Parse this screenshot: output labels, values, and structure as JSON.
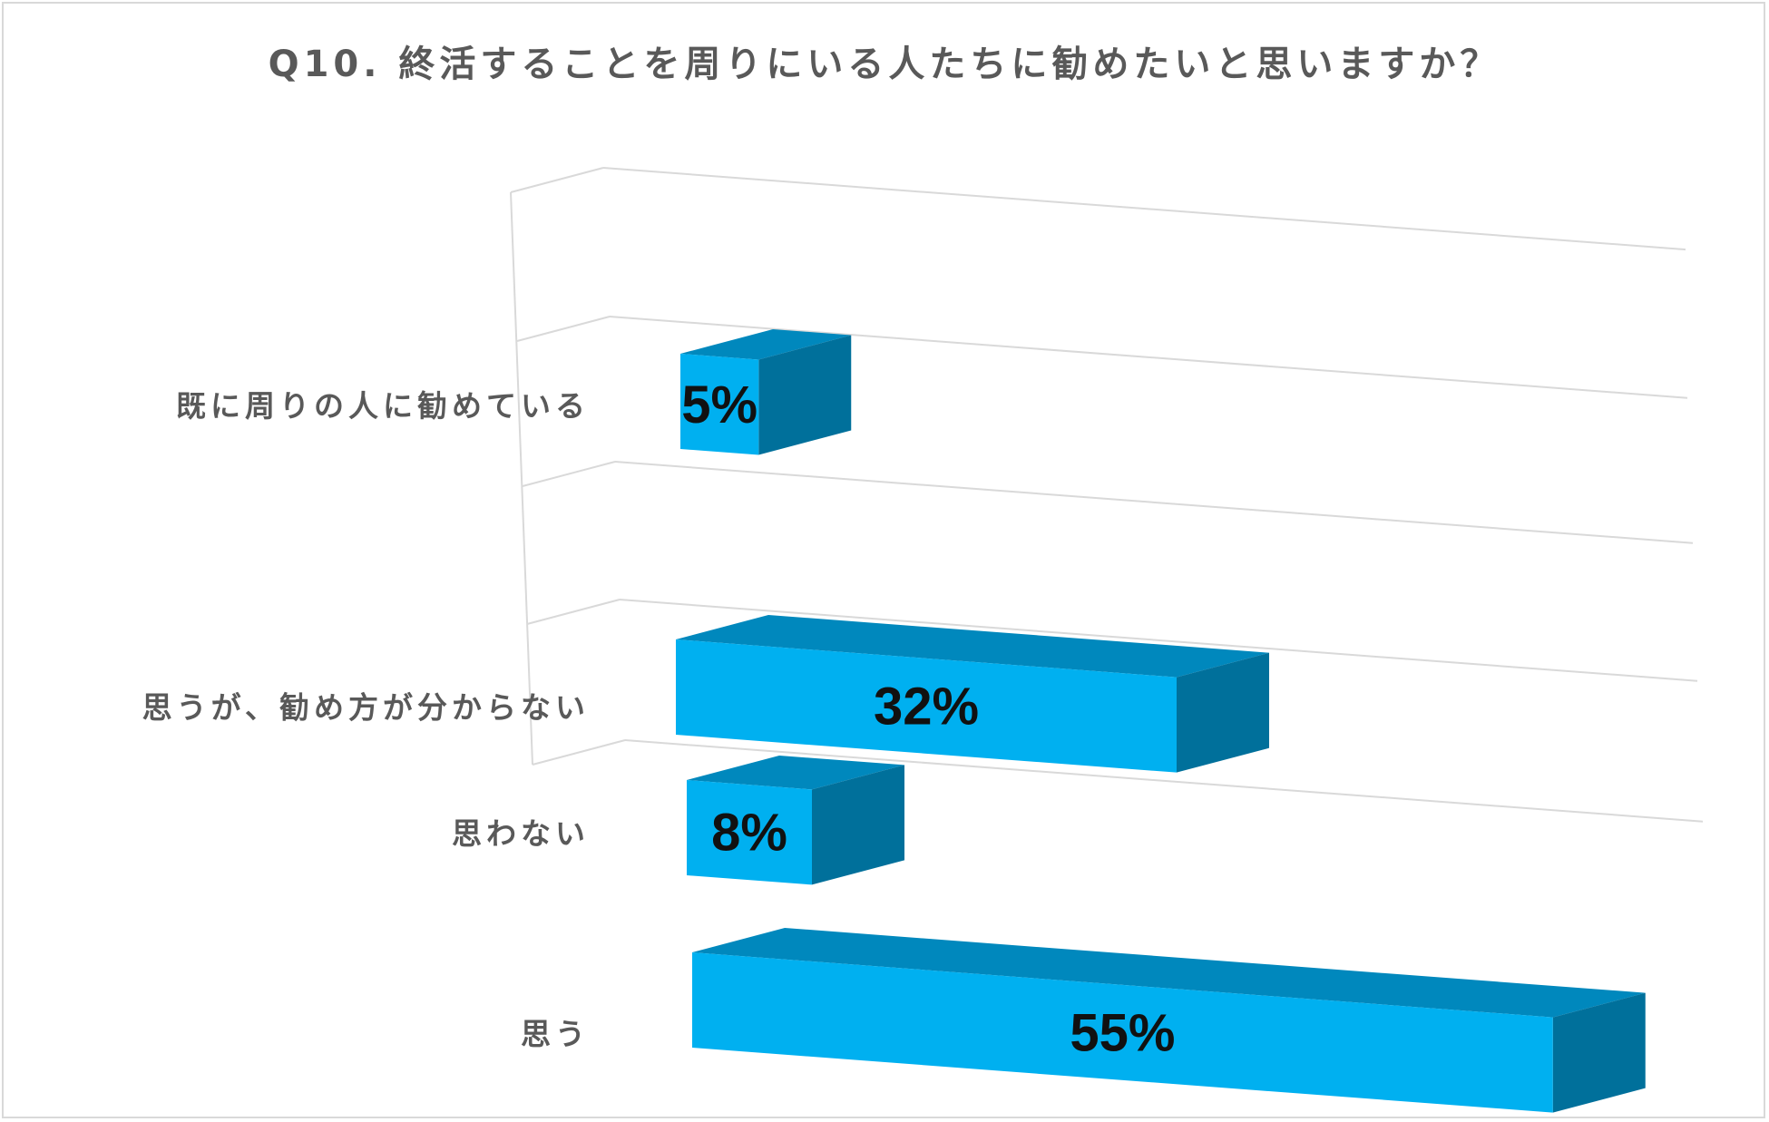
{
  "chart_data": {
    "type": "bar",
    "orientation": "horizontal",
    "style": "3d",
    "title": "Q10. 終活することを周りにいる人たちに勧めたいと思いますか？",
    "categories": [
      "思うが、勧め方が分からない",
      "既に周りの人に勧めている",
      "思わない",
      "思う"
    ],
    "values": [
      32,
      5,
      8,
      55
    ],
    "data_labels": [
      "32%",
      "5%",
      "8%",
      "55%"
    ],
    "unit": "%",
    "xlim": [
      0,
      60
    ],
    "grid": true,
    "legend": "none",
    "colors": {
      "bar_front": "#00b0f0",
      "bar_top": "#0088bd",
      "bar_side": "#00709b",
      "grid": "#d9d9d9",
      "label": "#595959"
    }
  }
}
